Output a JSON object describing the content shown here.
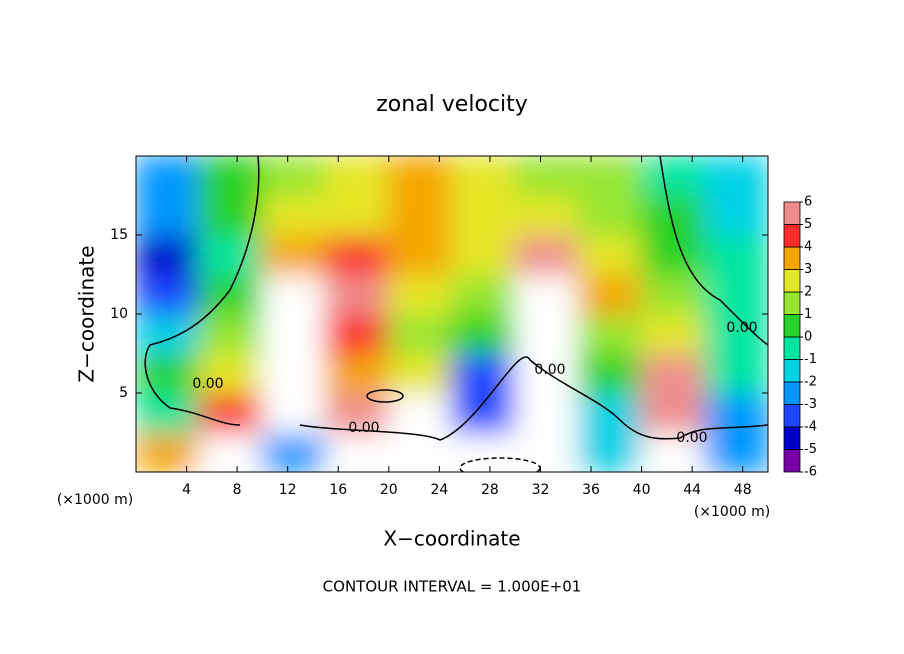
{
  "chart_data": {
    "type": "heatmap",
    "title": "zonal velocity",
    "x_label": "X−coordinate",
    "y_label": "Z−coordinate",
    "axis_units": [
      "(×1000 m)",
      "(×1000 m)"
    ],
    "footnote": "CONTOUR INTERVAL = 1.000E+01",
    "contour_labels": [
      "0.00",
      "0.00",
      "0.00",
      "0.00",
      "0.00"
    ],
    "xlim": [
      0,
      50
    ],
    "ylim": [
      0,
      20
    ],
    "xticks": [
      4,
      8,
      12,
      16,
      20,
      24,
      28,
      32,
      36,
      40,
      44,
      48
    ],
    "yticks": [
      5,
      10,
      15
    ],
    "colorbar": {
      "ticks": [
        -6,
        -5,
        -4,
        -3,
        -2,
        -1,
        0,
        1,
        2,
        3,
        4,
        5,
        6
      ],
      "colors": [
        "#7a00a8",
        "#0000c8",
        "#1e46ff",
        "#0096ff",
        "#00d2e6",
        "#00e6a0",
        "#28d228",
        "#96e632",
        "#e6e628",
        "#f5a500",
        "#fa2d2d",
        "#f08c8c"
      ],
      "over_color": "#ffffff"
    },
    "z": [
      [
        3,
        7,
        -3,
        7,
        7,
        7,
        7,
        -2,
        7,
        -3
      ],
      [
        -1,
        4,
        7,
        5,
        7,
        -4,
        7,
        -2,
        5,
        -3
      ],
      [
        0,
        2,
        7,
        3,
        2,
        -4,
        7,
        0,
        5,
        -1
      ],
      [
        -2,
        1,
        7,
        4,
        1,
        0,
        7,
        1,
        2,
        -1
      ],
      [
        -4,
        0,
        6,
        5,
        2,
        1,
        6,
        3,
        1,
        -1
      ],
      [
        -5,
        -1,
        3,
        4,
        3,
        2,
        5,
        2,
        0,
        -1
      ],
      [
        -3,
        0,
        2,
        2,
        3,
        2,
        2,
        1,
        0,
        -2
      ],
      [
        -3,
        0,
        1,
        2,
        3,
        2,
        1,
        1,
        -1,
        -2
      ]
    ]
  }
}
